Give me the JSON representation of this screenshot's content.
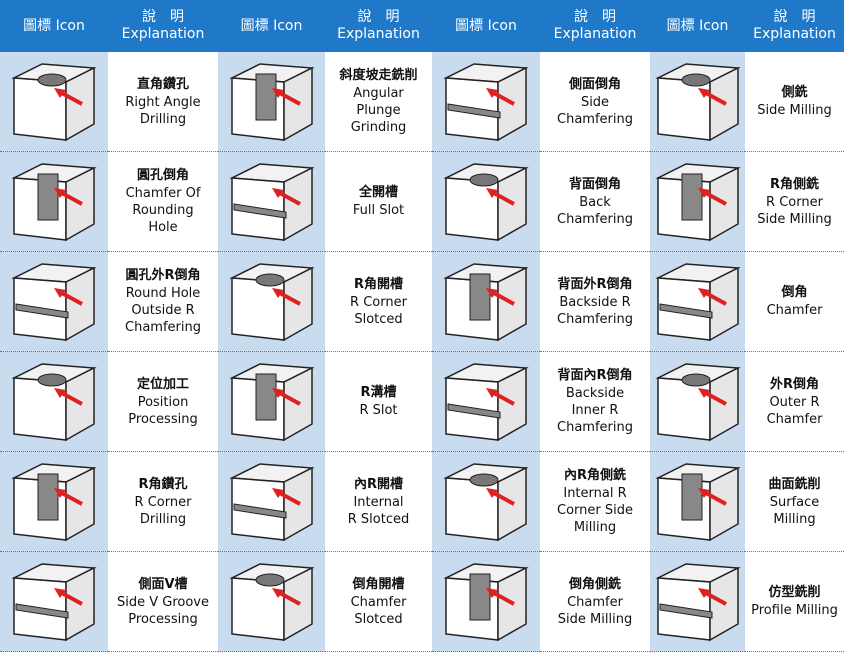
{
  "header": [
    {
      "icon": "圖標 Icon",
      "explanation_zh": "說　明",
      "explanation_en": "Explanation"
    },
    {
      "icon": "圖標 Icon",
      "explanation_zh": "說　明",
      "explanation_en": "Explanation"
    },
    {
      "icon": "圖標 Icon",
      "explanation_zh": "說　明",
      "explanation_en": "Explanation"
    },
    {
      "icon": "圖標 Icon",
      "explanation_zh": "說　明",
      "explanation_en": "Explanation"
    }
  ],
  "table": {
    "rows": [
      [
        {
          "zh": "直角鑽孔",
          "en": [
            "Right Angle",
            "Drilling"
          ]
        },
        {
          "zh": "斜度坡走銑削",
          "en": [
            "Angular",
            "Plunge",
            "Grinding"
          ]
        },
        {
          "zh": "側面倒角",
          "en": [
            "Side",
            "Chamfering"
          ]
        },
        {
          "zh": "側銑",
          "en": [
            "Side Milling"
          ]
        }
      ],
      [
        {
          "zh": "圓孔倒角",
          "en": [
            "Chamfer Of",
            "Rounding",
            "Hole"
          ]
        },
        {
          "zh": "全開槽",
          "en": [
            "Full Slot"
          ]
        },
        {
          "zh": "背面倒角",
          "en": [
            "Back",
            "Chamfering"
          ]
        },
        {
          "zh": "R角側銑",
          "en": [
            "R Corner",
            "Side Milling"
          ]
        }
      ],
      [
        {
          "zh": "圓孔外R倒角",
          "en": [
            "Round Hole",
            "Outside R",
            "Chamfering"
          ]
        },
        {
          "zh": "R角開槽",
          "en": [
            "R Corner",
            "Slotced"
          ]
        },
        {
          "zh": "背面外R倒角",
          "en": [
            "Backside R",
            "Chamfering"
          ]
        },
        {
          "zh": "倒角",
          "en": [
            "Chamfer"
          ]
        }
      ],
      [
        {
          "zh": "定位加工",
          "en": [
            "Position",
            "Processing"
          ]
        },
        {
          "zh": "R溝槽",
          "en": [
            "R Slot"
          ]
        },
        {
          "zh": "背面內R倒角",
          "en": [
            "Backside",
            "Inner R",
            "Chamfering"
          ]
        },
        {
          "zh": "外R倒角",
          "en": [
            "Outer R",
            "Chamfer"
          ]
        }
      ],
      [
        {
          "zh": "R角鑽孔",
          "en": [
            "R Corner",
            "Drilling"
          ]
        },
        {
          "zh": "內R開槽",
          "en": [
            "Internal",
            "R Slotced"
          ]
        },
        {
          "zh": "內R角側銑",
          "en": [
            "Internal R",
            "Corner Side",
            "Milling"
          ]
        },
        {
          "zh": "曲面銑削",
          "en": [
            "Surface",
            "Milling"
          ]
        }
      ],
      [
        {
          "zh": "側面V槽",
          "en": [
            "Side V Groove",
            "Processing"
          ]
        },
        {
          "zh": "倒角開槽",
          "en": [
            "Chamfer",
            "Slotced"
          ]
        },
        {
          "zh": "倒角側銑",
          "en": [
            "Chamfer",
            "Side Milling"
          ]
        },
        {
          "zh": "仿型銑削",
          "en": [
            "Profile Milling"
          ]
        }
      ]
    ]
  }
}
